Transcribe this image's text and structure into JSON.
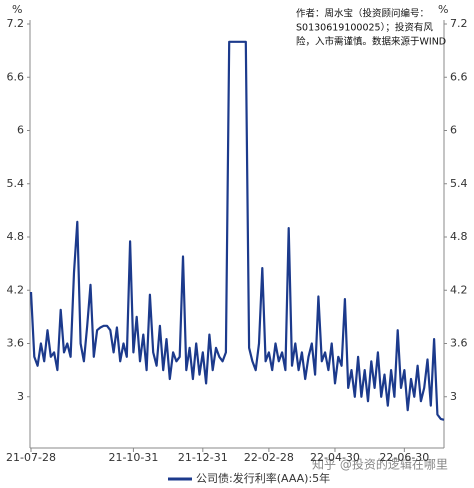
{
  "chart_data": {
    "type": "line",
    "y_unit": "%",
    "annotation": [
      "作者：周水宝（投资顾问编号：",
      "S0130619100025）；投资有风",
      "险，入市需谨慎。数据来源于WIND"
    ],
    "watermark": "知乎 @投资的逻辑在哪里",
    "categories": [
      "21-07-28",
      null,
      null,
      null,
      null,
      null,
      null,
      null,
      null,
      null,
      null,
      null,
      null,
      null,
      null,
      null,
      null,
      null,
      null,
      null,
      null,
      null,
      null,
      null,
      null,
      null,
      null,
      null,
      null,
      null,
      null,
      "21-10-31",
      null,
      null,
      null,
      null,
      null,
      null,
      null,
      null,
      null,
      null,
      null,
      null,
      null,
      null,
      null,
      null,
      null,
      null,
      null,
      null,
      "21-12-31",
      null,
      null,
      null,
      null,
      null,
      null,
      null,
      null,
      null,
      null,
      null,
      null,
      null,
      null,
      null,
      null,
      null,
      null,
      null,
      "22-02-28",
      null,
      null,
      null,
      null,
      null,
      null,
      null,
      null,
      null,
      null,
      null,
      null,
      null,
      null,
      null,
      null,
      null,
      null,
      null,
      "22-04-30",
      null,
      null,
      null,
      null,
      null,
      null,
      null,
      null,
      null,
      null,
      null,
      null,
      null,
      null,
      null,
      null,
      null,
      null,
      null,
      null,
      "22-06-30",
      null,
      null,
      null,
      null,
      null,
      null,
      null,
      null,
      null,
      null,
      null,
      null
    ],
    "series": [
      {
        "name": "公司债:发行利率(AAA):5年",
        "color": "#1c3a8c",
        "values": [
          4.18,
          3.45,
          3.35,
          3.6,
          3.4,
          3.75,
          3.45,
          3.5,
          3.3,
          3.98,
          3.5,
          3.6,
          3.45,
          4.4,
          4.97,
          3.6,
          3.4,
          3.8,
          4.26,
          3.45,
          3.75,
          3.78,
          3.8,
          3.8,
          3.75,
          3.5,
          3.78,
          3.4,
          3.6,
          3.45,
          4.75,
          3.5,
          3.9,
          3.4,
          3.7,
          3.3,
          4.15,
          3.5,
          3.35,
          3.8,
          3.3,
          3.65,
          3.2,
          3.5,
          3.4,
          3.45,
          4.58,
          3.3,
          3.55,
          3.2,
          3.6,
          3.25,
          3.5,
          3.15,
          3.7,
          3.3,
          3.55,
          3.45,
          3.4,
          3.5,
          7.0,
          7.0,
          7.0,
          7.0,
          7.0,
          7.0,
          3.55,
          3.4,
          3.3,
          3.6,
          4.45,
          3.4,
          3.5,
          3.3,
          3.6,
          3.4,
          3.5,
          3.3,
          4.9,
          3.35,
          3.6,
          3.3,
          3.5,
          3.2,
          3.45,
          3.6,
          3.25,
          4.13,
          3.4,
          3.5,
          3.3,
          3.6,
          3.15,
          3.45,
          3.35,
          4.1,
          3.1,
          3.3,
          3.0,
          3.45,
          3.0,
          3.3,
          2.95,
          3.4,
          3.1,
          3.5,
          3.0,
          3.25,
          2.9,
          3.3,
          3.0,
          3.75,
          3.1,
          3.3,
          2.85,
          3.2,
          3.0,
          3.35,
          2.95,
          3.1,
          3.42,
          2.9,
          3.65,
          2.8,
          2.75,
          2.74
        ]
      }
    ],
    "ylim": [
      2.4,
      7.2
    ],
    "yticks": [
      3,
      3.6,
      4.2,
      4.8,
      5.4,
      6,
      6.6,
      7.2
    ],
    "grid": false
  }
}
